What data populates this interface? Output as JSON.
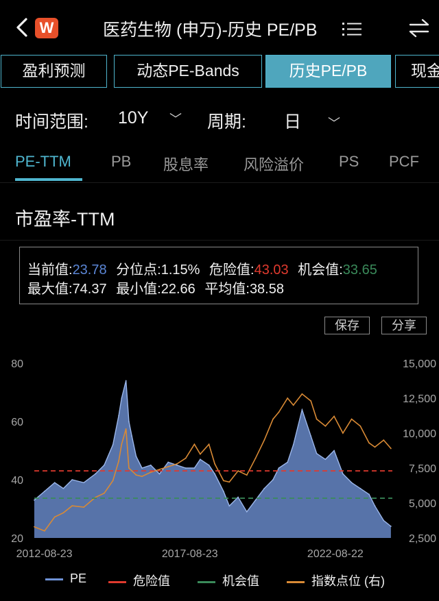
{
  "header": {
    "logo_text": "W",
    "title": "医药生物 (申万)-历史 PE/PB"
  },
  "tabs": [
    {
      "label": "盈利预测"
    },
    {
      "label": "动态PE-Bands"
    },
    {
      "label": "历史PE/PB"
    },
    {
      "label": "现金"
    }
  ],
  "filters": {
    "range_label": "时间范围:",
    "range_value": "10Y",
    "period_label": "周期:",
    "period_value": "日"
  },
  "subtabs": [
    {
      "label": "PE-TTM"
    },
    {
      "label": "PB"
    },
    {
      "label": "股息率"
    },
    {
      "label": "风险溢价"
    },
    {
      "label": "PS"
    },
    {
      "label": "PCF"
    }
  ],
  "section_title": "市盈率-TTM",
  "stats": {
    "current_label": "当前值:",
    "current_value": "23.78",
    "percentile_label": "分位点:",
    "percentile_value": "1.15%",
    "danger_label": "危险值:",
    "danger_value": "43.03",
    "chance_label": "机会值:",
    "chance_value": "33.65",
    "max_label": "最大值:",
    "max_value": "74.37",
    "min_label": "最小值:",
    "min_value": "22.66",
    "avg_label": "平均值:",
    "avg_value": "38.58"
  },
  "buttons": {
    "save": "保存",
    "share": "分享"
  },
  "colors": {
    "accent": "#4fb6cf",
    "pe": "#6f93d8",
    "danger": "#e03a2e",
    "chance": "#3a8a5a",
    "index": "#d98a35",
    "current_value": "#5b86d6"
  },
  "chart_data": {
    "type": "area",
    "x_tick_labels": [
      "2012-08-23",
      "2017-08-23",
      "2022-08-22"
    ],
    "y_left": {
      "ticks": [
        "20",
        "40",
        "60",
        "80"
      ],
      "range": [
        20,
        80
      ]
    },
    "y_right": {
      "ticks": [
        "2,500",
        "5,000",
        "7,500",
        "10,000",
        "12,500",
        "15,000"
      ],
      "range": [
        2500,
        15000
      ]
    },
    "danger_value": 43.03,
    "chance_value": 33.65,
    "legend": [
      "PE",
      "危险值",
      "机会值",
      "指数点位 (右)"
    ],
    "series": [
      {
        "name": "PE",
        "axis": "left",
        "x": [
          2012.3,
          2012.65,
          2013.0,
          2013.3,
          2013.6,
          2014.0,
          2014.4,
          2014.7,
          2015.0,
          2015.2,
          2015.3,
          2015.45,
          2015.55,
          2015.65,
          2015.8,
          2016.0,
          2016.3,
          2016.6,
          2016.9,
          2017.2,
          2017.5,
          2017.8,
          2018.0,
          2018.3,
          2018.5,
          2018.8,
          2019.0,
          2019.3,
          2019.6,
          2019.9,
          2020.2,
          2020.5,
          2020.7,
          2021.0,
          2021.2,
          2021.5,
          2021.8,
          2022.0,
          2022.3,
          2022.6,
          2022.9,
          2023.2,
          2023.5,
          2023.8,
          2024.0,
          2024.3,
          2024.55
        ],
        "values": [
          33,
          36,
          39,
          37,
          40,
          39,
          42,
          45,
          52,
          62,
          68,
          74,
          60,
          55,
          48,
          44,
          45,
          42,
          46,
          45,
          44,
          44,
          47,
          45,
          42,
          36,
          31,
          34,
          29,
          33,
          37,
          40,
          44,
          46,
          52,
          64,
          55,
          49,
          47,
          50,
          42,
          39,
          37,
          35,
          31,
          26,
          24
        ]
      },
      {
        "name": "指数点位 (右)",
        "axis": "right",
        "x": [
          2012.3,
          2012.65,
          2013.0,
          2013.3,
          2013.6,
          2014.0,
          2014.4,
          2014.7,
          2015.0,
          2015.2,
          2015.3,
          2015.45,
          2015.55,
          2015.65,
          2015.8,
          2016.0,
          2016.3,
          2016.6,
          2016.9,
          2017.2,
          2017.5,
          2017.8,
          2018.0,
          2018.3,
          2018.5,
          2018.8,
          2019.0,
          2019.3,
          2019.6,
          2019.9,
          2020.2,
          2020.5,
          2020.7,
          2021.0,
          2021.2,
          2021.5,
          2021.8,
          2022.0,
          2022.3,
          2022.6,
          2022.9,
          2023.2,
          2023.5,
          2023.8,
          2024.0,
          2024.3,
          2024.55
        ],
        "values": [
          3300,
          3000,
          4000,
          4300,
          4800,
          4700,
          5400,
          5700,
          6600,
          8000,
          9200,
          10300,
          7500,
          7300,
          7000,
          6900,
          7200,
          7400,
          7600,
          7800,
          8200,
          9200,
          8500,
          9200,
          7800,
          6600,
          6500,
          7300,
          7000,
          8200,
          9500,
          11000,
          11500,
          12500,
          12000,
          12800,
          12300,
          11000,
          10500,
          11200,
          10000,
          11000,
          10500,
          9300,
          9000,
          9500,
          8900
        ]
      }
    ]
  }
}
